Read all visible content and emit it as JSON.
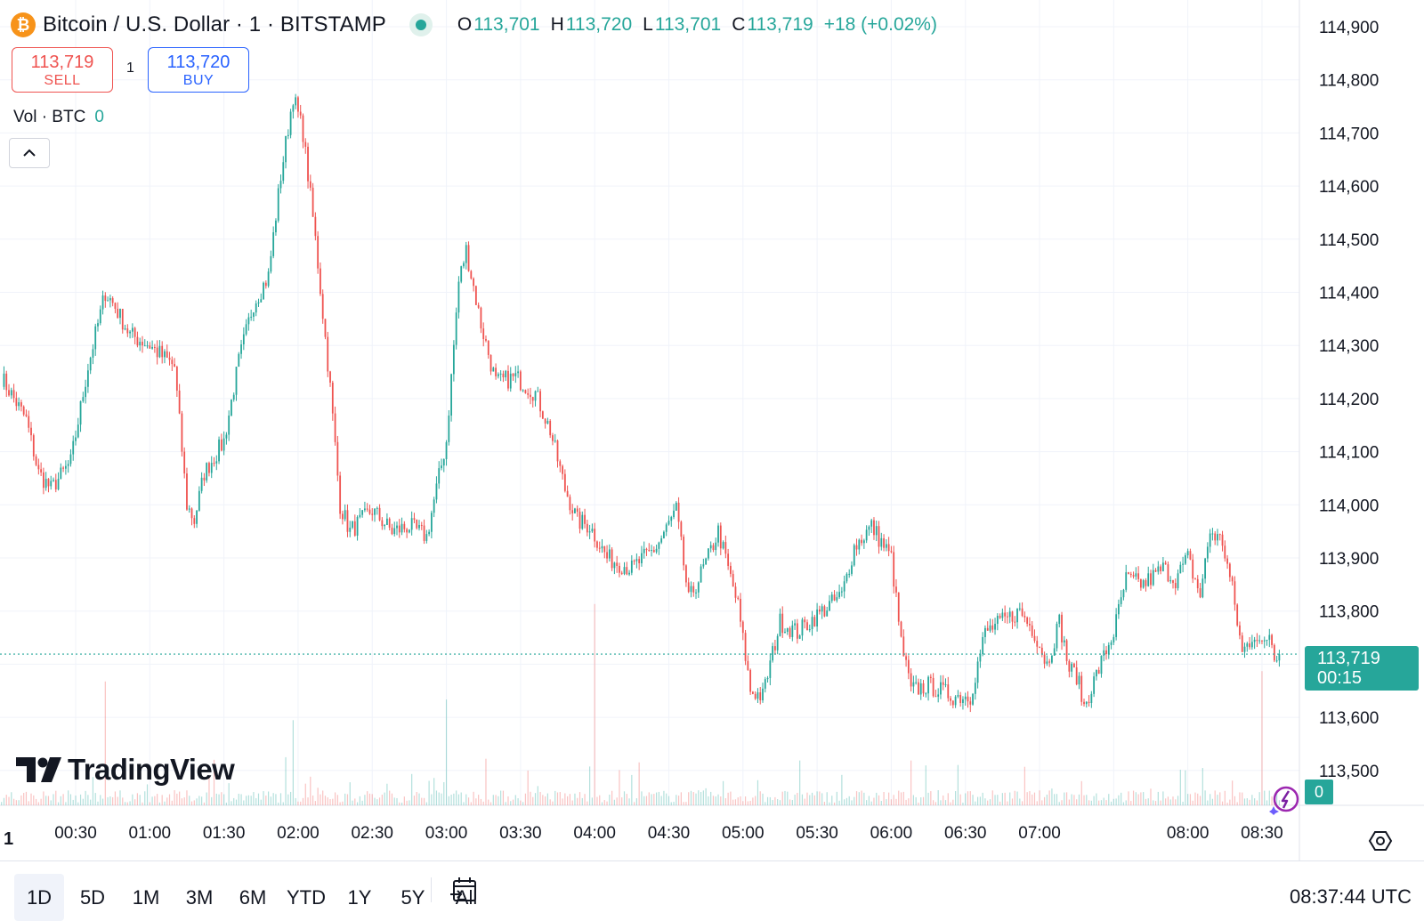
{
  "symbol": {
    "title": "Bitcoin / U.S. Dollar · 1 · BITSTAMP",
    "icon": "bitcoin-icon",
    "icon_glyph": "₿"
  },
  "ohlc": {
    "open_label": "O",
    "open": "113,701",
    "high_label": "H",
    "high": "113,720",
    "low_label": "L",
    "low": "113,701",
    "close_label": "C",
    "close": "113,719",
    "change": "+18 (+0.02%)"
  },
  "trade": {
    "sell_price": "113,719",
    "sell_label": "SELL",
    "spread": "1",
    "buy_price": "113,720",
    "buy_label": "BUY"
  },
  "volume_legend": {
    "label": "Vol · BTC",
    "value": "0"
  },
  "price_axis": {
    "labels": [
      "114,900",
      "114,800",
      "114,700",
      "114,600",
      "114,500",
      "114,400",
      "114,300",
      "114,200",
      "114,100",
      "114,000",
      "113,900",
      "113,800",
      "113,600",
      "113,500"
    ]
  },
  "current_price": {
    "price": "113,719",
    "countdown": "00:15",
    "volume": "0"
  },
  "time_axis": {
    "interval_marker": "1",
    "labels": [
      "00:30",
      "01:00",
      "01:30",
      "02:00",
      "02:30",
      "03:00",
      "03:30",
      "04:00",
      "04:30",
      "05:00",
      "05:30",
      "06:00",
      "06:30",
      "07:00",
      "08:00",
      "08:30"
    ]
  },
  "range_buttons": [
    "1D",
    "5D",
    "1M",
    "3M",
    "6M",
    "YTD",
    "1Y",
    "5Y",
    "All"
  ],
  "active_range": "1D",
  "clock": "08:37:44 UTC",
  "watermark": "TradingView",
  "colors": {
    "up": "#26a69a",
    "down": "#ef5350",
    "grid": "#f0f3fa",
    "text": "#131722"
  },
  "chart_data": {
    "type": "candlestick",
    "symbol": "BTCUSD",
    "interval": "1",
    "exchange": "BITSTAMP",
    "ylim": [
      113480,
      114920
    ],
    "yticks": [
      114900,
      114800,
      114700,
      114600,
      114500,
      114400,
      114300,
      114200,
      114100,
      114000,
      113900,
      113800,
      113600,
      113500
    ],
    "xticks": [
      "00:30",
      "01:00",
      "01:30",
      "02:00",
      "02:30",
      "03:00",
      "03:30",
      "04:00",
      "04:30",
      "05:00",
      "05:30",
      "06:00",
      "06:30",
      "07:00",
      "08:00",
      "08:30"
    ],
    "close_path": [
      [
        "00:00",
        114240
      ],
      [
        "00:10",
        114160
      ],
      [
        "00:15",
        114060
      ],
      [
        "00:20",
        114030
      ],
      [
        "00:28",
        114080
      ],
      [
        "00:35",
        114260
      ],
      [
        "00:42",
        114400
      ],
      [
        "00:45",
        114380
      ],
      [
        "00:52",
        114320
      ],
      [
        "01:00",
        114300
      ],
      [
        "01:10",
        114260
      ],
      [
        "01:15",
        114000
      ],
      [
        "01:18",
        113970
      ],
      [
        "01:22",
        114060
      ],
      [
        "01:30",
        114120
      ],
      [
        "01:36",
        114270
      ],
      [
        "01:42",
        114380
      ],
      [
        "01:48",
        114430
      ],
      [
        "01:53",
        114620
      ],
      [
        "01:58",
        114770
      ],
      [
        "02:02",
        114700
      ],
      [
        "02:07",
        114500
      ],
      [
        "02:13",
        114220
      ],
      [
        "02:17",
        114000
      ],
      [
        "02:21",
        113950
      ],
      [
        "02:30",
        113990
      ],
      [
        "02:38",
        113950
      ],
      [
        "02:45",
        113960
      ],
      [
        "02:52",
        113940
      ],
      [
        "03:00",
        114120
      ],
      [
        "03:05",
        114420
      ],
      [
        "03:08",
        114480
      ],
      [
        "03:14",
        114340
      ],
      [
        "03:20",
        114230
      ],
      [
        "03:28",
        114240
      ],
      [
        "03:36",
        114210
      ],
      [
        "03:42",
        114140
      ],
      [
        "03:48",
        114030
      ],
      [
        "03:53",
        113970
      ],
      [
        "03:58",
        113960
      ],
      [
        "04:05",
        113900
      ],
      [
        "04:15",
        113880
      ],
      [
        "04:25",
        113920
      ],
      [
        "04:33",
        113990
      ],
      [
        "04:38",
        113820
      ],
      [
        "04:45",
        113890
      ],
      [
        "04:50",
        113950
      ],
      [
        "04:58",
        113810
      ],
      [
        "05:03",
        113650
      ],
      [
        "05:08",
        113640
      ],
      [
        "05:15",
        113780
      ],
      [
        "05:22",
        113760
      ],
      [
        "05:32",
        113800
      ],
      [
        "05:40",
        113830
      ],
      [
        "05:45",
        113920
      ],
      [
        "05:52",
        113960
      ],
      [
        "06:00",
        113900
      ],
      [
        "06:04",
        113740
      ],
      [
        "06:08",
        113650
      ],
      [
        "06:15",
        113660
      ],
      [
        "06:25",
        113640
      ],
      [
        "06:32",
        113640
      ],
      [
        "06:38",
        113760
      ],
      [
        "06:45",
        113780
      ],
      [
        "06:52",
        113800
      ],
      [
        "06:58",
        113760
      ],
      [
        "07:03",
        113700
      ],
      [
        "07:08",
        113780
      ],
      [
        "07:12",
        113690
      ],
      [
        "07:15",
        113680
      ],
      [
        "07:18",
        113620
      ],
      [
        "07:23",
        113680
      ],
      [
        "07:30",
        113760
      ],
      [
        "07:35",
        113860
      ],
      [
        "07:42",
        113850
      ],
      [
        "07:50",
        113880
      ],
      [
        "07:55",
        113860
      ],
      [
        "08:00",
        113900
      ],
      [
        "08:05",
        113830
      ],
      [
        "08:09",
        113950
      ],
      [
        "08:14",
        113930
      ],
      [
        "08:18",
        113840
      ],
      [
        "08:22",
        113720
      ],
      [
        "08:27",
        113760
      ],
      [
        "08:30",
        113730
      ],
      [
        "08:33",
        113760
      ],
      [
        "08:35",
        113720
      ],
      [
        "08:37",
        113719
      ]
    ],
    "volume": {
      "label": "Vol · BTC",
      "current": 0,
      "spikes": [
        [
          "00:42",
          0.48
        ],
        [
          "01:58",
          0.33
        ],
        [
          "03:00",
          0.41
        ],
        [
          "04:00",
          0.78
        ],
        [
          "08:30",
          0.52
        ]
      ]
    }
  }
}
